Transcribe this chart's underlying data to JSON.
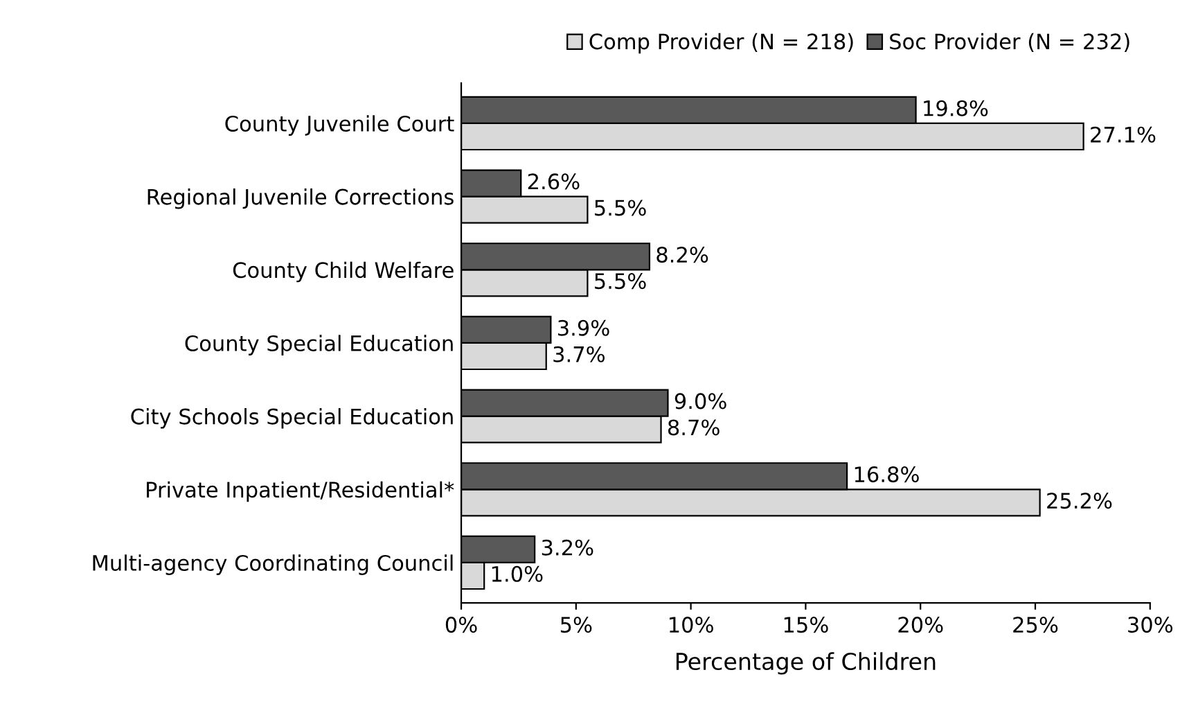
{
  "chart_data": {
    "type": "bar",
    "orientation": "horizontal",
    "xlabel": "Percentage of Children",
    "categories": [
      "County Juvenile Court",
      "Regional Juvenile Corrections",
      "County Child Welfare",
      "County Special Education",
      "City Schools Special Education",
      "Private Inpatient/Residential*",
      "Multi-agency Coordinating Council"
    ],
    "series": [
      {
        "name": "Comp Provider (N = 218)",
        "color": "#d9d9d9",
        "values": [
          27.1,
          5.5,
          5.5,
          3.7,
          8.7,
          25.2,
          1.0
        ],
        "value_labels": [
          "27.1%",
          "5.5%",
          "5.5%",
          "3.7%",
          "8.7%",
          "25.2%",
          "1.0%"
        ]
      },
      {
        "name": "Soc Provider (N = 232)",
        "color": "#595959",
        "values": [
          19.8,
          2.6,
          8.2,
          3.9,
          9.0,
          16.8,
          3.2
        ],
        "value_labels": [
          "19.8%",
          "2.6%",
          "8.2%",
          "3.9%",
          "9.0%",
          "16.8%",
          "3.2%"
        ]
      }
    ],
    "xlim": [
      0,
      30
    ],
    "xticks": [
      {
        "value": 0,
        "label": "0%"
      },
      {
        "value": 5,
        "label": "5%"
      },
      {
        "value": 10,
        "label": "10%"
      },
      {
        "value": 15,
        "label": "15%"
      },
      {
        "value": 20,
        "label": "20%"
      },
      {
        "value": 25,
        "label": "25%"
      },
      {
        "value": 30,
        "label": "30%"
      }
    ],
    "legend": "top right",
    "grid": false
  }
}
